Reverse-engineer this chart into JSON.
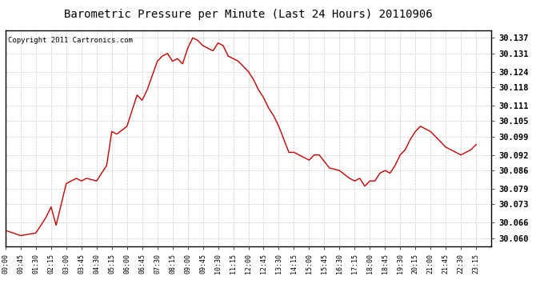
{
  "title": "Barometric Pressure per Minute (Last 24 Hours) 20110906",
  "copyright": "Copyright 2011 Cartronics.com",
  "background_color": "#ffffff",
  "plot_bg_color": "#ffffff",
  "line_color": "#cc0000",
  "grid_color": "#cccccc",
  "yticks": [
    30.06,
    30.066,
    30.073,
    30.079,
    30.086,
    30.092,
    30.099,
    30.105,
    30.111,
    30.118,
    30.124,
    30.131,
    30.137
  ],
  "ylim": [
    30.057,
    30.14
  ],
  "xtick_labels": [
    "00:00",
    "00:45",
    "01:30",
    "02:15",
    "03:00",
    "03:45",
    "04:30",
    "05:15",
    "06:00",
    "06:45",
    "07:30",
    "08:15",
    "09:00",
    "09:45",
    "10:30",
    "11:15",
    "12:00",
    "12:45",
    "13:30",
    "14:15",
    "15:00",
    "15:45",
    "16:30",
    "17:15",
    "18:00",
    "18:45",
    "19:30",
    "20:15",
    "21:00",
    "21:45",
    "22:30",
    "23:15"
  ],
  "keypoints": [
    [
      0,
      30.063
    ],
    [
      45,
      30.061
    ],
    [
      90,
      30.062
    ],
    [
      120,
      30.068
    ],
    [
      135,
      30.072
    ],
    [
      150,
      30.065
    ],
    [
      180,
      30.081
    ],
    [
      210,
      30.083
    ],
    [
      225,
      30.082
    ],
    [
      240,
      30.083
    ],
    [
      270,
      30.082
    ],
    [
      300,
      30.088
    ],
    [
      315,
      30.101
    ],
    [
      330,
      30.1
    ],
    [
      360,
      30.103
    ],
    [
      390,
      30.115
    ],
    [
      405,
      30.113
    ],
    [
      420,
      30.117
    ],
    [
      450,
      30.128
    ],
    [
      465,
      30.13
    ],
    [
      480,
      30.131
    ],
    [
      495,
      30.128
    ],
    [
      510,
      30.129
    ],
    [
      525,
      30.127
    ],
    [
      540,
      30.133
    ],
    [
      555,
      30.137
    ],
    [
      570,
      30.136
    ],
    [
      585,
      30.134
    ],
    [
      600,
      30.133
    ],
    [
      615,
      30.132
    ],
    [
      630,
      30.135
    ],
    [
      645,
      30.134
    ],
    [
      660,
      30.13
    ],
    [
      675,
      30.129
    ],
    [
      690,
      30.128
    ],
    [
      720,
      30.124
    ],
    [
      735,
      30.121
    ],
    [
      750,
      30.117
    ],
    [
      765,
      30.114
    ],
    [
      780,
      30.11
    ],
    [
      795,
      30.107
    ],
    [
      810,
      30.103
    ],
    [
      825,
      30.098
    ],
    [
      840,
      30.093
    ],
    [
      855,
      30.093
    ],
    [
      870,
      30.092
    ],
    [
      900,
      30.09
    ],
    [
      915,
      30.092
    ],
    [
      930,
      30.092
    ],
    [
      960,
      30.087
    ],
    [
      990,
      30.086
    ],
    [
      1020,
      30.083
    ],
    [
      1035,
      30.082
    ],
    [
      1050,
      30.083
    ],
    [
      1065,
      30.08
    ],
    [
      1080,
      30.082
    ],
    [
      1095,
      30.082
    ],
    [
      1110,
      30.085
    ],
    [
      1125,
      30.086
    ],
    [
      1140,
      30.085
    ],
    [
      1155,
      30.088
    ],
    [
      1170,
      30.092
    ],
    [
      1185,
      30.094
    ],
    [
      1200,
      30.098
    ],
    [
      1215,
      30.101
    ],
    [
      1230,
      30.103
    ],
    [
      1245,
      30.102
    ],
    [
      1260,
      30.101
    ],
    [
      1275,
      30.099
    ],
    [
      1290,
      30.097
    ],
    [
      1305,
      30.095
    ],
    [
      1320,
      30.094
    ],
    [
      1335,
      30.093
    ],
    [
      1350,
      30.092
    ],
    [
      1380,
      30.094
    ],
    [
      1395,
      30.096
    ]
  ],
  "title_fontsize": 10,
  "copyright_fontsize": 6.5,
  "ytick_fontsize": 7.5,
  "xtick_fontsize": 6
}
